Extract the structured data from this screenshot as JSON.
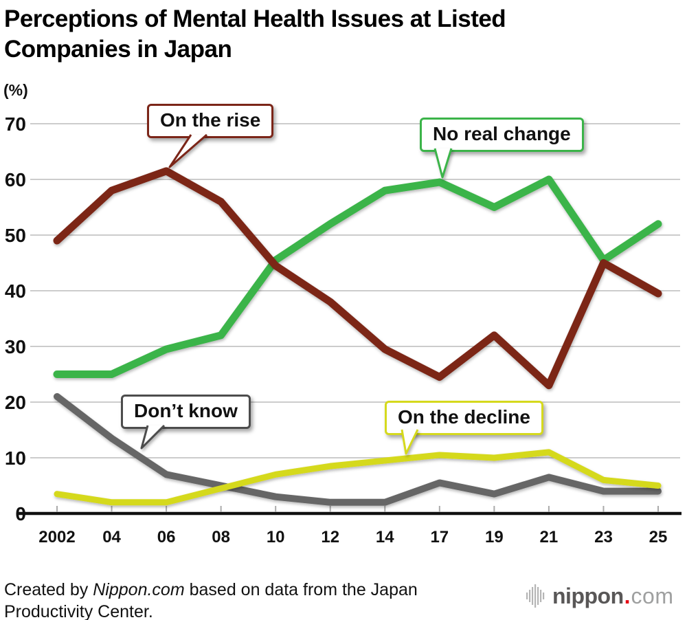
{
  "title": "Perceptions of Mental Health Issues at Listed Companies in Japan",
  "y_axis_unit_label": "(%)",
  "chart_data": {
    "type": "line",
    "title": "Perceptions of Mental Health Issues at Listed Companies in Japan",
    "unit": "%",
    "x_labels": [
      "2002",
      "04",
      "06",
      "08",
      "10",
      "12",
      "14",
      "17",
      "19",
      "21",
      "23",
      "25"
    ],
    "ylim": [
      0,
      70
    ],
    "y_tick_step": 10,
    "grid": true,
    "legend_position": "callout-labels-on-chart",
    "series": [
      {
        "name": "On the rise",
        "color": "#7b2518",
        "values": [
          49,
          58,
          61.5,
          56,
          44.5,
          38,
          29.5,
          24.5,
          32,
          23,
          45,
          39.5
        ]
      },
      {
        "name": "No real change",
        "color": "#3bb449",
        "values": [
          25,
          25,
          29.5,
          32,
          45.5,
          52,
          58,
          59.5,
          55,
          60,
          45.5,
          52
        ]
      },
      {
        "name": "Don’t know",
        "color": "#666666",
        "values": [
          21,
          13.5,
          7,
          5,
          3,
          2,
          2,
          5.5,
          3.5,
          6.5,
          4,
          4
        ]
      },
      {
        "name": "On the decline",
        "color": "#d5d91d",
        "values": [
          3.5,
          2,
          2,
          4.5,
          7,
          8.5,
          9.5,
          10.5,
          10,
          11,
          6,
          5
        ]
      }
    ]
  },
  "callouts": {
    "on_the_rise": "On the rise",
    "no_real_change": "No real change",
    "dont_know": "Don’t know",
    "on_the_decline": "On the decline"
  },
  "footer": {
    "prefix": "Created by ",
    "brand": "Nippon.com",
    "line1_rest": " based on data from the Japan",
    "line2": "Productivity Center."
  },
  "logo": {
    "name": "nippon",
    "dot": ".",
    "tld": "com"
  },
  "colors": {
    "on_the_rise": "#7b2518",
    "no_real_change": "#3bb449",
    "dont_know": "#666666",
    "on_the_decline": "#d5d91d",
    "gridline": "#cccccc",
    "axis": "#111111",
    "logo_dot_red": "#e60012"
  }
}
